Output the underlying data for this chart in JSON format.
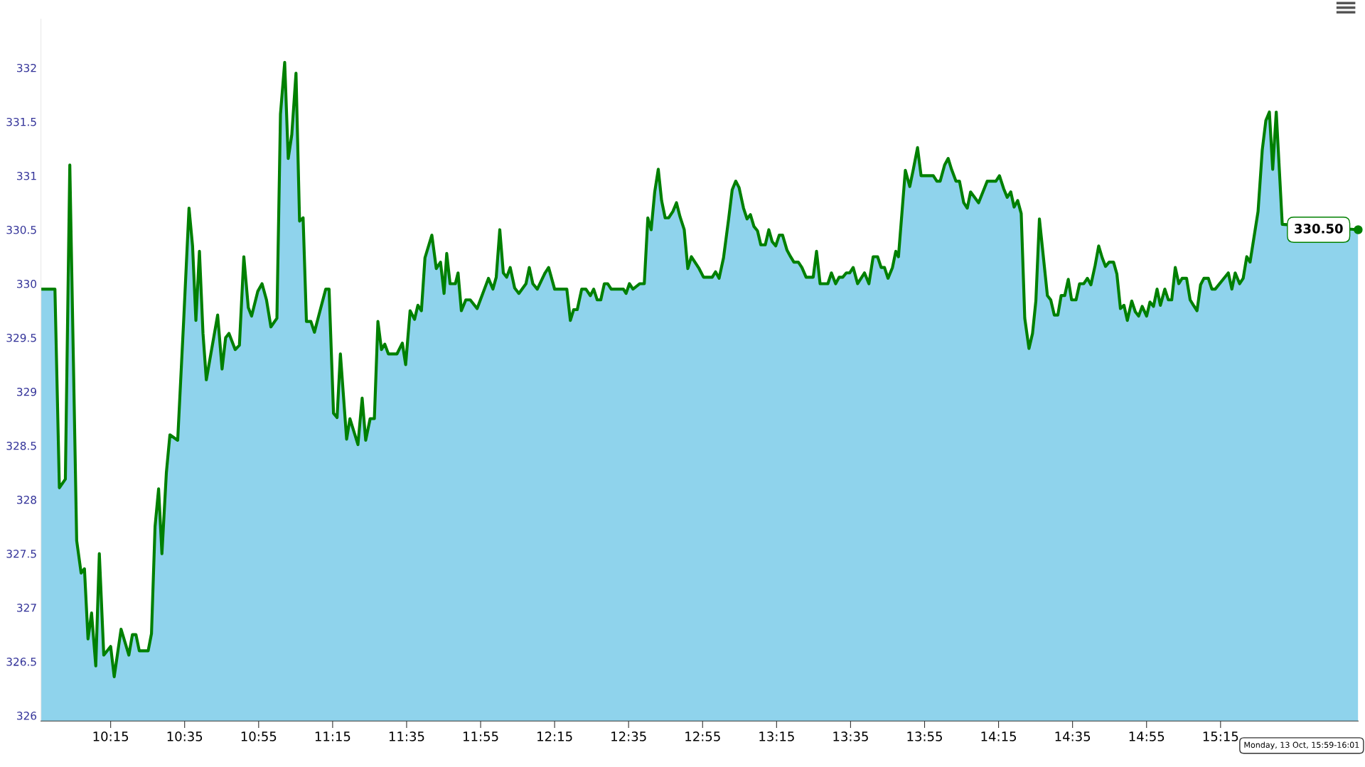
{
  "chart_data": {
    "type": "area",
    "x": [
      9.936,
      9.999,
      10.019,
      10.046,
      10.066,
      10.097,
      10.117,
      10.132,
      10.148,
      10.164,
      10.183,
      10.199,
      10.219,
      10.25,
      10.266,
      10.297,
      10.332,
      10.348,
      10.364,
      10.379,
      10.419,
      10.434,
      10.45,
      10.466,
      10.481,
      10.501,
      10.517,
      10.552,
      10.579,
      10.603,
      10.619,
      10.634,
      10.65,
      10.666,
      10.681,
      10.732,
      10.752,
      10.768,
      10.783,
      10.811,
      10.83,
      10.85,
      10.87,
      10.885,
      10.913,
      10.932,
      10.952,
      10.972,
      10.999,
      11.015,
      11.034,
      11.05,
      11.066,
      11.085,
      11.101,
      11.117,
      11.132,
      11.152,
      11.168,
      11.187,
      11.219,
      11.234,
      11.254,
      11.27,
      11.285,
      11.313,
      11.328,
      11.364,
      11.383,
      11.399,
      11.419,
      11.438,
      11.454,
      11.47,
      11.485,
      11.501,
      11.54,
      11.564,
      11.579,
      11.599,
      11.619,
      11.634,
      11.65,
      11.666,
      11.697,
      11.717,
      11.736,
      11.752,
      11.764,
      11.779,
      11.803,
      11.815,
      11.83,
      11.85,
      11.87,
      11.901,
      11.952,
      11.972,
      11.987,
      12.003,
      12.019,
      12.034,
      12.05,
      12.07,
      12.089,
      12.121,
      12.136,
      12.152,
      12.172,
      12.207,
      12.223,
      12.25,
      12.305,
      12.321,
      12.336,
      12.352,
      12.372,
      12.391,
      12.411,
      12.426,
      12.442,
      12.458,
      12.474,
      12.489,
      12.505,
      12.56,
      12.572,
      12.587,
      12.603,
      12.634,
      12.654,
      12.67,
      12.685,
      12.701,
      12.717,
      12.732,
      12.748,
      12.764,
      12.783,
      12.799,
      12.815,
      12.834,
      12.85,
      12.866,
      12.901,
      12.921,
      12.96,
      12.975,
      12.991,
      13.011,
      13.034,
      13.05,
      13.066,
      13.081,
      13.101,
      13.117,
      13.132,
      13.148,
      13.164,
      13.179,
      13.199,
      13.215,
      13.23,
      13.246,
      13.262,
      13.277,
      13.297,
      13.313,
      13.328,
      13.348,
      13.364,
      13.383,
      13.415,
      13.43,
      13.446,
      13.481,
      13.497,
      13.516,
      13.532,
      13.548,
      13.564,
      13.579,
      13.595,
      13.615,
      13.646,
      13.666,
      13.685,
      13.705,
      13.721,
      13.736,
      13.752,
      13.772,
      13.787,
      13.799,
      13.83,
      13.85,
      13.866,
      13.885,
      13.901,
      13.956,
      13.972,
      13.987,
      14.007,
      14.023,
      14.038,
      14.058,
      14.074,
      14.093,
      14.109,
      14.124,
      14.16,
      14.199,
      14.238,
      14.254,
      14.273,
      14.289,
      14.305,
      14.32,
      14.336,
      14.352,
      14.368,
      14.387,
      14.403,
      14.418,
      14.434,
      14.47,
      14.485,
      14.501,
      14.517,
      14.532,
      14.548,
      14.564,
      14.579,
      14.599,
      14.615,
      14.634,
      14.65,
      14.666,
      14.685,
      14.701,
      14.717,
      14.732,
      14.748,
      14.768,
      14.783,
      14.799,
      14.815,
      14.83,
      14.85,
      14.866,
      14.881,
      14.897,
      14.917,
      14.932,
      14.948,
      14.964,
      14.979,
      14.999,
      15.015,
      15.03,
      15.046,
      15.062,
      15.077,
      15.097,
      15.113,
      15.128,
      15.144,
      15.16,
      15.175,
      15.195,
      15.211,
      15.226,
      15.285,
      15.301,
      15.316,
      15.336,
      15.352,
      15.368,
      15.383,
      15.419,
      15.438,
      15.454,
      15.47,
      15.485,
      15.501,
      15.528,
      15.87
    ],
    "series": [
      {
        "color": "#8fd3ec",
        "values": [
          329.95,
          329.95,
          328.11,
          328.19,
          331.1,
          327.62,
          327.32,
          327.36,
          326.71,
          326.95,
          326.46,
          327.5,
          326.56,
          326.64,
          326.36,
          326.8,
          326.56,
          326.75,
          326.75,
          326.6,
          326.6,
          326.76,
          327.75,
          328.1,
          327.5,
          328.25,
          328.6,
          328.55,
          329.66,
          330.7,
          330.35,
          329.66,
          330.3,
          329.54,
          329.11,
          329.71,
          329.21,
          329.5,
          329.54,
          329.39,
          329.43,
          330.25,
          329.78,
          329.7,
          329.93,
          330.0,
          329.85,
          329.6,
          329.68,
          331.57,
          332.05,
          331.16,
          331.38,
          331.95,
          330.58,
          330.61,
          329.65,
          329.65,
          329.55,
          329.7,
          329.95,
          329.95,
          328.8,
          328.76,
          329.35,
          328.56,
          328.75,
          328.51,
          328.94,
          328.55,
          328.75,
          328.75,
          329.65,
          329.39,
          329.44,
          329.35,
          329.35,
          329.45,
          329.25,
          329.75,
          329.67,
          329.8,
          329.75,
          330.24,
          330.45,
          330.14,
          330.2,
          329.91,
          330.28,
          330.0,
          330.0,
          330.1,
          329.75,
          329.85,
          329.85,
          329.77,
          330.05,
          329.95,
          330.06,
          330.5,
          330.1,
          330.06,
          330.15,
          329.96,
          329.91,
          330.0,
          330.15,
          330.0,
          329.95,
          330.1,
          330.15,
          329.95,
          329.95,
          329.66,
          329.76,
          329.76,
          329.95,
          329.95,
          329.89,
          329.95,
          329.85,
          329.85,
          330.0,
          330.0,
          329.95,
          329.95,
          329.91,
          330.0,
          329.95,
          330.0,
          330.0,
          330.61,
          330.5,
          330.85,
          331.06,
          330.77,
          330.61,
          330.61,
          330.67,
          330.75,
          330.62,
          330.5,
          330.14,
          330.25,
          330.14,
          330.06,
          330.06,
          330.11,
          330.05,
          330.24,
          330.6,
          330.87,
          330.95,
          330.89,
          330.7,
          330.6,
          330.64,
          330.53,
          330.49,
          330.36,
          330.36,
          330.5,
          330.39,
          330.35,
          330.45,
          330.45,
          330.31,
          330.25,
          330.2,
          330.2,
          330.15,
          330.06,
          330.06,
          330.3,
          330.0,
          330.0,
          330.1,
          330.0,
          330.06,
          330.06,
          330.1,
          330.1,
          330.15,
          330.0,
          330.1,
          330.0,
          330.25,
          330.25,
          330.15,
          330.15,
          330.05,
          330.15,
          330.3,
          330.25,
          331.05,
          330.9,
          331.06,
          331.26,
          331.0,
          331.0,
          330.95,
          330.95,
          331.1,
          331.16,
          331.06,
          330.95,
          330.95,
          330.75,
          330.7,
          330.85,
          330.75,
          330.95,
          330.95,
          331.0,
          330.88,
          330.8,
          330.85,
          330.71,
          330.77,
          330.65,
          329.68,
          329.4,
          329.54,
          329.84,
          330.6,
          329.89,
          329.85,
          329.71,
          329.71,
          329.89,
          329.89,
          330.04,
          329.85,
          329.85,
          330.0,
          330.0,
          330.05,
          329.99,
          330.17,
          330.35,
          330.24,
          330.16,
          330.2,
          330.2,
          330.09,
          329.77,
          329.8,
          329.66,
          329.84,
          329.74,
          329.7,
          329.79,
          329.7,
          329.83,
          329.79,
          329.95,
          329.8,
          329.95,
          329.85,
          329.85,
          330.15,
          330.0,
          330.05,
          330.05,
          329.85,
          329.8,
          329.75,
          329.99,
          330.05,
          330.05,
          329.95,
          329.95,
          330.1,
          329.95,
          330.1,
          330.0,
          330.05,
          330.25,
          330.2,
          330.67,
          331.24,
          331.51,
          331.59,
          331.06,
          331.59,
          330.55,
          330.5
        ]
      },
      {
        "type": "line",
        "color": "#008000",
        "values": [
          329.95,
          329.95,
          328.11,
          328.19,
          331.1,
          327.62,
          327.32,
          327.36,
          326.71,
          326.95,
          326.46,
          327.5,
          326.56,
          326.64,
          326.36,
          326.8,
          326.56,
          326.75,
          326.75,
          326.6,
          326.6,
          326.76,
          327.75,
          328.1,
          327.5,
          328.25,
          328.6,
          328.55,
          329.66,
          330.7,
          330.35,
          329.66,
          330.3,
          329.54,
          329.11,
          329.71,
          329.21,
          329.5,
          329.54,
          329.39,
          329.43,
          330.25,
          329.78,
          329.7,
          329.93,
          330.0,
          329.85,
          329.6,
          329.68,
          331.57,
          332.05,
          331.16,
          331.38,
          331.95,
          330.58,
          330.61,
          329.65,
          329.65,
          329.55,
          329.7,
          329.95,
          329.95,
          328.8,
          328.76,
          329.35,
          328.56,
          328.75,
          328.51,
          328.94,
          328.55,
          328.75,
          328.75,
          329.65,
          329.39,
          329.44,
          329.35,
          329.35,
          329.45,
          329.25,
          329.75,
          329.67,
          329.8,
          329.75,
          330.24,
          330.45,
          330.14,
          330.2,
          329.91,
          330.28,
          330.0,
          330.0,
          330.1,
          329.75,
          329.85,
          329.85,
          329.77,
          330.05,
          329.95,
          330.06,
          330.5,
          330.1,
          330.06,
          330.15,
          329.96,
          329.91,
          330.0,
          330.15,
          330.0,
          329.95,
          330.1,
          330.15,
          329.95,
          329.95,
          329.66,
          329.76,
          329.76,
          329.95,
          329.95,
          329.89,
          329.95,
          329.85,
          329.85,
          330.0,
          330.0,
          329.95,
          329.95,
          329.91,
          330.0,
          329.95,
          330.0,
          330.0,
          330.61,
          330.5,
          330.85,
          331.06,
          330.77,
          330.61,
          330.61,
          330.67,
          330.75,
          330.62,
          330.5,
          330.14,
          330.25,
          330.14,
          330.06,
          330.06,
          330.11,
          330.05,
          330.24,
          330.6,
          330.87,
          330.95,
          330.89,
          330.7,
          330.6,
          330.64,
          330.53,
          330.49,
          330.36,
          330.36,
          330.5,
          330.39,
          330.35,
          330.45,
          330.45,
          330.31,
          330.25,
          330.2,
          330.2,
          330.15,
          330.06,
          330.06,
          330.3,
          330.0,
          330.0,
          330.1,
          330.0,
          330.06,
          330.06,
          330.1,
          330.1,
          330.15,
          330.0,
          330.1,
          330.0,
          330.25,
          330.25,
          330.15,
          330.15,
          330.05,
          330.15,
          330.3,
          330.25,
          331.05,
          330.9,
          331.06,
          331.26,
          331.0,
          331.0,
          330.95,
          330.95,
          331.1,
          331.16,
          331.06,
          330.95,
          330.95,
          330.75,
          330.7,
          330.85,
          330.75,
          330.95,
          330.95,
          331.0,
          330.88,
          330.8,
          330.85,
          330.71,
          330.77,
          330.65,
          329.68,
          329.4,
          329.54,
          329.84,
          330.6,
          329.89,
          329.85,
          329.71,
          329.71,
          329.89,
          329.89,
          330.04,
          329.85,
          329.85,
          330.0,
          330.0,
          330.05,
          329.99,
          330.17,
          330.35,
          330.24,
          330.16,
          330.2,
          330.2,
          330.09,
          329.77,
          329.8,
          329.66,
          329.84,
          329.74,
          329.7,
          329.79,
          329.7,
          329.83,
          329.79,
          329.95,
          329.8,
          329.95,
          329.85,
          329.85,
          330.15,
          330.0,
          330.05,
          330.05,
          329.85,
          329.8,
          329.75,
          329.99,
          330.05,
          330.05,
          329.95,
          329.95,
          330.1,
          329.95,
          330.1,
          330.0,
          330.05,
          330.25,
          330.2,
          330.67,
          331.24,
          331.51,
          331.59,
          331.06,
          331.59,
          330.55,
          330.5
        ]
      }
    ],
    "xlim": [
      9.936,
      15.87
    ],
    "xticks": [
      {
        "value": 10.25,
        "label": "10:15"
      },
      {
        "value": 10.5833,
        "label": "10:35"
      },
      {
        "value": 10.9167,
        "label": "10:55"
      },
      {
        "value": 11.25,
        "label": "11:15"
      },
      {
        "value": 11.5833,
        "label": "11:35"
      },
      {
        "value": 11.9167,
        "label": "11:55"
      },
      {
        "value": 12.25,
        "label": "12:15"
      },
      {
        "value": 12.5833,
        "label": "12:35"
      },
      {
        "value": 12.9167,
        "label": "12:55"
      },
      {
        "value": 13.25,
        "label": "13:15"
      },
      {
        "value": 13.5833,
        "label": "13:35"
      },
      {
        "value": 13.9167,
        "label": "13:55"
      },
      {
        "value": 14.25,
        "label": "14:15"
      },
      {
        "value": 14.5833,
        "label": "14:35"
      },
      {
        "value": 14.9167,
        "label": "14:55"
      },
      {
        "value": 15.25,
        "label": "15:15"
      }
    ],
    "ylim": [
      325.95,
      332.45
    ],
    "yticks": [
      326,
      326.5,
      327,
      327.5,
      328,
      328.5,
      329,
      329.5,
      330,
      330.5,
      331,
      331.5,
      332
    ],
    "grid": false,
    "annotations": [
      {
        "text": "330.50",
        "x": 15.87,
        "y": 330.5
      },
      "Monday, 13 Oct, 15:59-16:01"
    ]
  }
}
